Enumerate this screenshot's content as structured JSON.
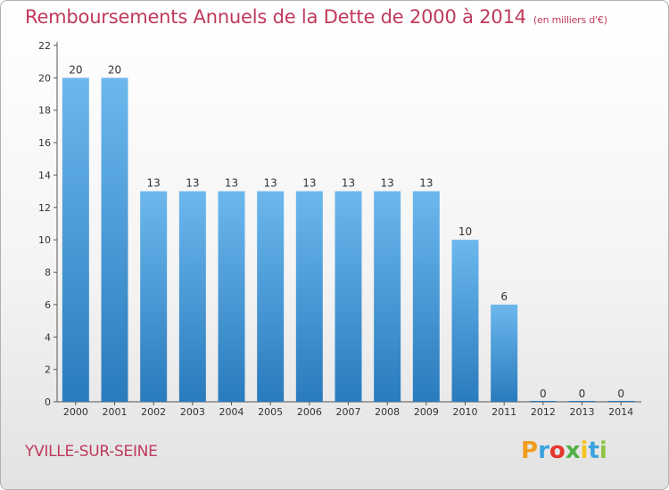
{
  "page": {
    "title": "Remboursements Annuels de la Dette de 2000 à 2014",
    "subtitle": "(en milliers d'€)",
    "commune": "YVILLE-SUR-SEINE",
    "brand": [
      "P",
      "r",
      "o",
      "x",
      "i",
      "t",
      "i"
    ],
    "brand_colors": [
      "#f19c1f",
      "#3aa3dc",
      "#e6362c",
      "#4fb045",
      "#f7c21a",
      "#3aa3dc",
      "#8bc53f"
    ],
    "title_color": "#c0395b",
    "bar_color_top": "#6cb8ee",
    "bar_color_bottom": "#2a7bbd"
  },
  "chart_data": {
    "type": "bar",
    "title": "Remboursements Annuels de la Dette de 2000 à 2014",
    "ylabel": "en milliers d'€",
    "xlabel": "",
    "categories": [
      "2000",
      "2001",
      "2002",
      "2003",
      "2004",
      "2005",
      "2006",
      "2007",
      "2008",
      "2009",
      "2010",
      "2011",
      "2012",
      "2013",
      "2014"
    ],
    "values": [
      20,
      20,
      13,
      13,
      13,
      13,
      13,
      13,
      13,
      13,
      10,
      6,
      0,
      0,
      0
    ],
    "ylim": [
      0,
      22
    ],
    "yticks": [
      "0",
      "2",
      "4",
      "6",
      "8",
      "10",
      "12",
      "14",
      "16",
      "18",
      "20",
      "22"
    ],
    "grid": false
  }
}
